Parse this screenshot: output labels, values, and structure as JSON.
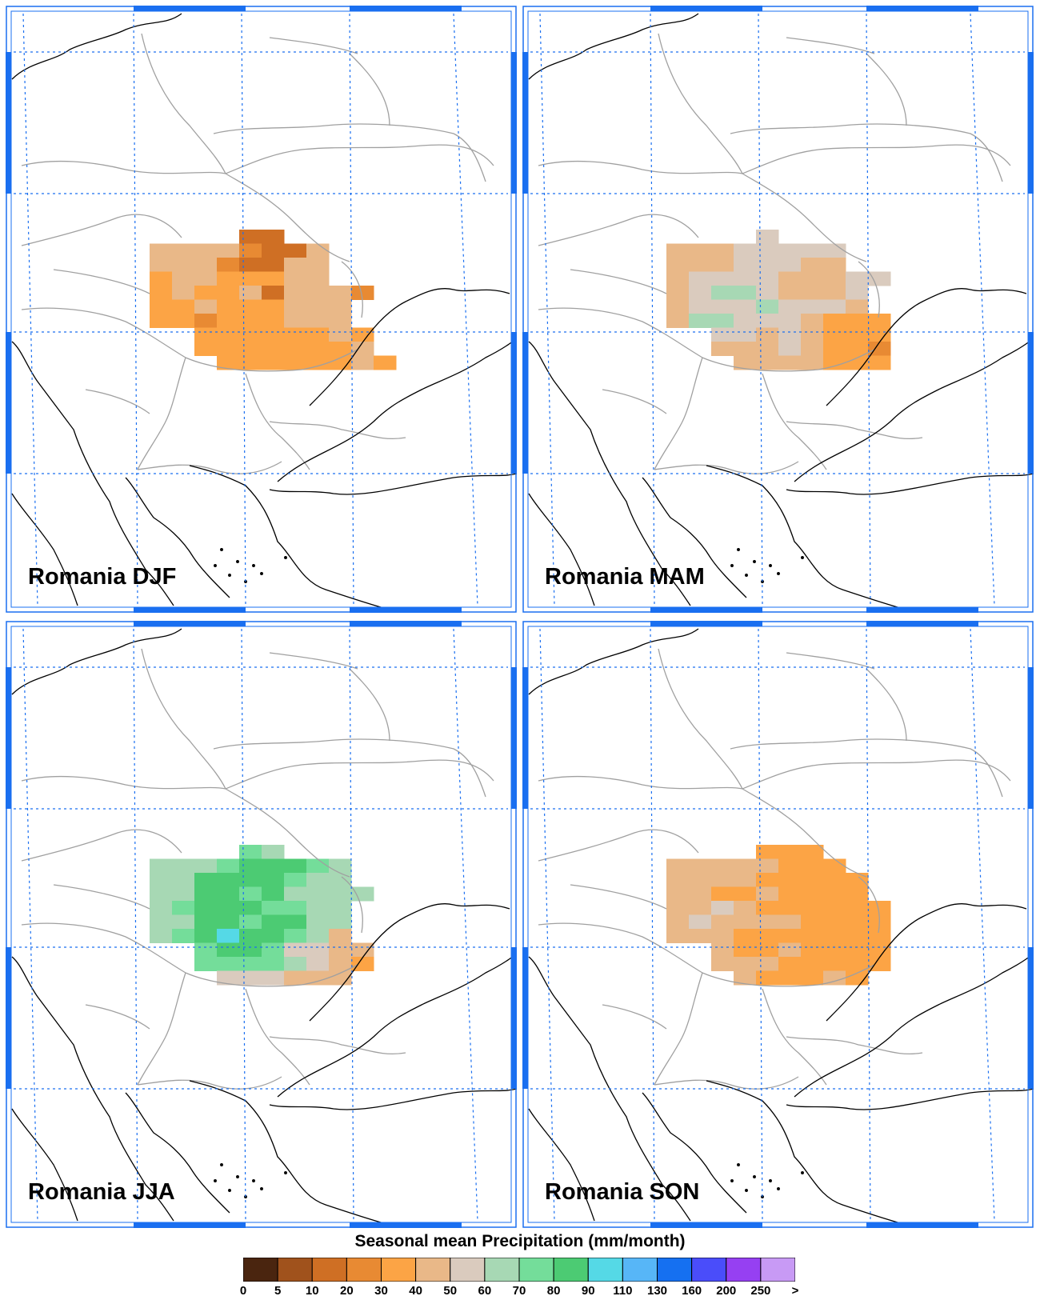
{
  "panels": [
    {
      "id": "djf",
      "title": "Romania DJF"
    },
    {
      "id": "mam",
      "title": "Romania MAM"
    },
    {
      "id": "jja",
      "title": "Romania JJA"
    },
    {
      "id": "son",
      "title": "Romania SON"
    }
  ],
  "legend": {
    "title": "Seasonal mean Precipitation (mm/month)",
    "levels": [
      "0",
      "5",
      "10",
      "20",
      "30",
      "40",
      "50",
      "60",
      "70",
      "80",
      "90",
      "110",
      "130",
      "160",
      "200",
      "250",
      ">"
    ],
    "colors": [
      "#4a250f",
      "#a0521c",
      "#cf6f24",
      "#e88a33",
      "#fca445",
      "#e9b888",
      "#dacbbe",
      "#a7d8b4",
      "#74dd9a",
      "#4ccb73",
      "#55d9e6",
      "#57b6f7",
      "#1570f1",
      "#4a4dfa",
      "#9640f2",
      "#c89af5"
    ]
  },
  "colors": {
    "frame": "#1a6ff0",
    "graticule": "#1a6ff0",
    "coastline": "#000000",
    "borders": "#a0a0a0"
  }
}
